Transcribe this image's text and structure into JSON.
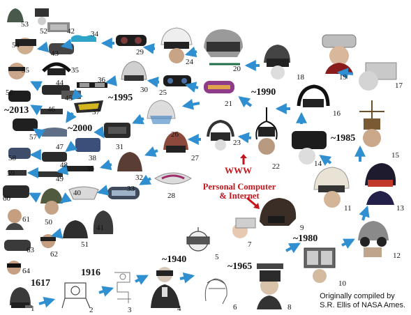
{
  "years": {
    "y1617": "1617",
    "y1916": "1916",
    "y1940": "~1940",
    "y1965": "~1965",
    "y1980": "~1980",
    "y1985": "~1985",
    "y1990": "~1990",
    "y1995": "~1995",
    "y2000": "~2000",
    "y2013": "~2013"
  },
  "milestones": {
    "www": "WWW",
    "pc_line1": "Personal Computer",
    "pc_line2": "& Internet"
  },
  "credit": {
    "line1": "Originally compiled by",
    "line2": "S.R. Ellis of NASA Ames."
  },
  "device_numbers": [
    "1",
    "2",
    "3",
    "4",
    "5",
    "6",
    "7",
    "8",
    "9",
    "10",
    "11",
    "12",
    "13",
    "14",
    "15",
    "16",
    "17",
    "18",
    "19",
    "20",
    "21",
    "22",
    "23",
    "24",
    "25",
    "26",
    "27",
    "28",
    "29",
    "30",
    "31",
    "32",
    "33",
    "34",
    "35",
    "36",
    "37",
    "38",
    "39",
    "40",
    "41",
    "42",
    "43",
    "44",
    "45",
    "46",
    "47",
    "48",
    "49",
    "50",
    "51",
    "52",
    "53",
    "54",
    "55",
    "56",
    "57",
    "58",
    "59",
    "60",
    "61",
    "62",
    "63",
    "64"
  ],
  "colors": {
    "arrow": "#2f8fd0",
    "milestone_red": "#c4161c",
    "text": "#111111"
  }
}
